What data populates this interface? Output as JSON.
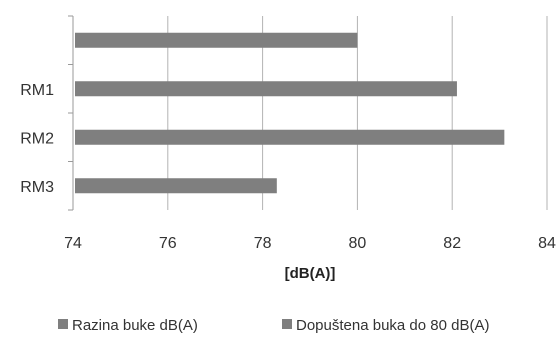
{
  "chart_data": {
    "type": "bar",
    "orientation": "horizontal",
    "title": "",
    "xlabel": "[dB(A)]",
    "ylabel": "",
    "xlim": [
      74,
      84
    ],
    "x_ticks": [
      74,
      76,
      78,
      80,
      82,
      84
    ],
    "grid": "vertical",
    "legend_position": "bottom",
    "bars": [
      {
        "category": "",
        "value": 80,
        "series": "Dopuštena buka do 80 dB(A)"
      },
      {
        "category": "RM1",
        "value": 82.1,
        "series": "Razina buke dB(A)"
      },
      {
        "category": "RM2",
        "value": 83.1,
        "series": "Razina buke dB(A)"
      },
      {
        "category": "RM3",
        "value": 78.3,
        "series": "Razina buke dB(A)"
      }
    ],
    "legend": [
      {
        "name": "Razina buke dB(A)",
        "color": "#7f7f7f"
      },
      {
        "name": "Dopuštena buka do 80 dB(A)",
        "color": "#7f7f7f"
      }
    ],
    "bar_color": "#7f7f7f",
    "grid_color": "#b3b3b3"
  }
}
